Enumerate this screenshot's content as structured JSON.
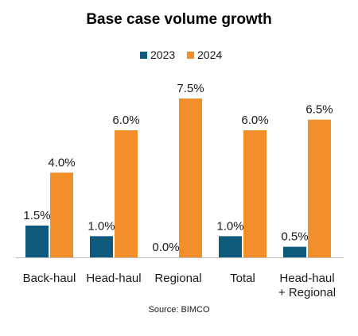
{
  "chart_data": {
    "type": "bar",
    "title": "Base case volume growth",
    "categories": [
      "Back-haul",
      "Head-haul",
      "Regional",
      "Total",
      "Head-haul\n+ Regional"
    ],
    "series": [
      {
        "name": "2023",
        "values": [
          1.5,
          1.0,
          0.0,
          1.0,
          0.5
        ],
        "labels": [
          "1.5%",
          "1.0%",
          "0.0%",
          "1.0%",
          "0.5%"
        ],
        "color": "#0e5a7d"
      },
      {
        "name": "2024",
        "values": [
          4.0,
          6.0,
          7.5,
          6.0,
          6.5
        ],
        "labels": [
          "4.0%",
          "6.0%",
          "7.5%",
          "6.0%",
          "6.5%"
        ],
        "color": "#f28f2b"
      }
    ],
    "ylim": [
      0,
      7.5
    ],
    "grid": false,
    "legend": "top-center",
    "source": "Source: BIMCO"
  }
}
